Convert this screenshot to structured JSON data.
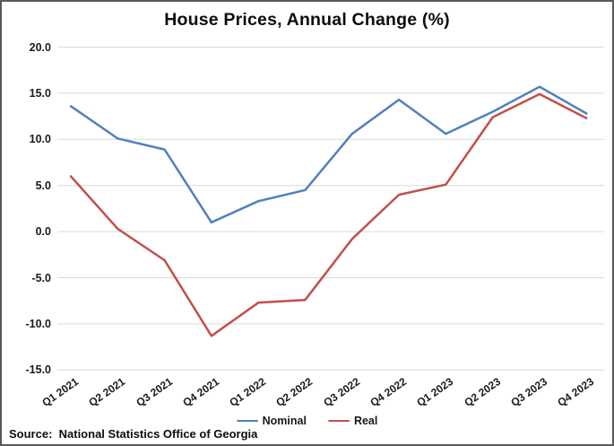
{
  "window": {
    "background": "#ffffff",
    "border_color": "#595959"
  },
  "chart_data": {
    "type": "line",
    "title": "House Prices, Annual Change (%)",
    "categories": [
      "Q1 2021",
      "Q2 2021",
      "Q3 2021",
      "Q4 2021",
      "Q1 2022",
      "Q2 2022",
      "Q3 2022",
      "Q4 2022",
      "Q1 2023",
      "Q2 2023",
      "Q3 2023",
      "Q4 2023"
    ],
    "series": [
      {
        "name": "Nominal",
        "color": "#4f81bd",
        "values": [
          13.6,
          10.1,
          8.9,
          1.0,
          3.3,
          4.5,
          10.6,
          14.3,
          10.6,
          13.0,
          15.7,
          12.8
        ]
      },
      {
        "name": "Real",
        "color": "#c0504d",
        "values": [
          6.0,
          0.3,
          -3.1,
          -11.3,
          -7.7,
          -7.4,
          -0.8,
          4.0,
          5.1,
          12.4,
          14.9,
          12.3
        ]
      }
    ],
    "ylim": [
      -15,
      20
    ],
    "ytick_step": 5,
    "ytick_labels": [
      "20.0",
      "15.0",
      "10.0",
      "5.0",
      "0.0",
      "-5.0",
      "-10.0",
      "-15.0"
    ],
    "xlabel": "",
    "ylabel": "",
    "grid": "horizontal",
    "gridline_color": "#d9d9d9",
    "legend_position": "bottom-center"
  },
  "source_note": "Source:  National Statistics Office of Georgia"
}
